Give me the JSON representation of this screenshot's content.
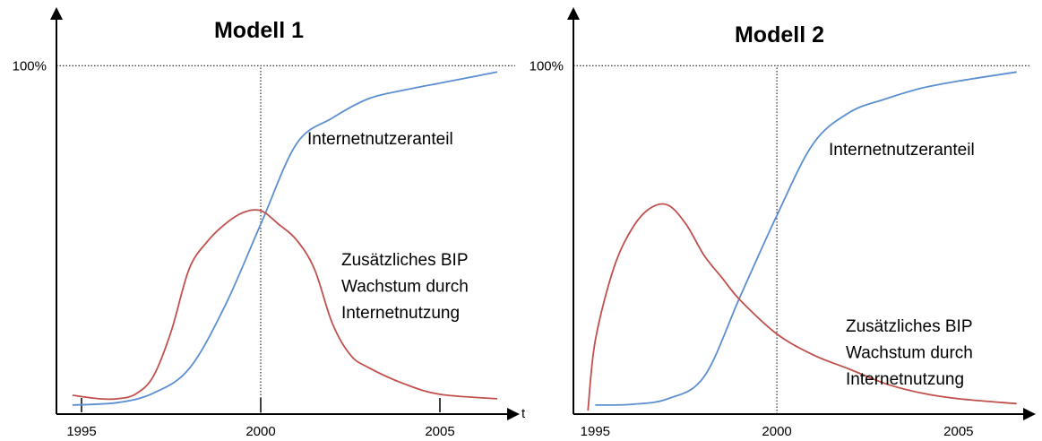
{
  "chart_data": [
    {
      "type": "line",
      "title": "Modell 1",
      "x_label": "t",
      "xlim": [
        1994.3,
        2007.2
      ],
      "xticks": [
        1995,
        2000,
        2005
      ],
      "tick_marks": true,
      "ylim": [
        0,
        115
      ],
      "yticks": [
        {
          "value": 100,
          "label": "100%"
        }
      ],
      "series": [
        {
          "color": "#5b8fd0",
          "x": [
            1994.75,
            1996,
            1997,
            1998,
            1999,
            2000,
            2001,
            2002,
            2003,
            2004,
            2005,
            2006,
            2006.6
          ],
          "values": [
            2.6,
            3.3,
            6,
            13,
            31,
            54.5,
            77.6,
            85,
            90.5,
            93,
            95,
            97,
            98.2
          ]
        },
        {
          "color": "#c0504d",
          "x": [
            1994.75,
            1995.5,
            1996,
            1996.5,
            1997,
            1997.5,
            1998,
            1998.5,
            1999,
            1999.5,
            2000,
            2000.5,
            2001,
            2001.5,
            2002,
            2002.5,
            2003,
            2004,
            2005,
            2006.6
          ],
          "values": [
            5.4,
            4.4,
            4.4,
            5.7,
            10.8,
            23.7,
            41.6,
            49.4,
            54.5,
            57.8,
            58.4,
            54.5,
            50,
            41.6,
            26,
            17,
            13.4,
            8.7,
            5.7,
            4.4
          ]
        }
      ],
      "annotations": [
        {
          "lines": [
            "Internetnutzeranteil"
          ]
        },
        {
          "lines": [
            "Zusätzliches BIP",
            "Wachstum durch",
            "Internetnutzung"
          ]
        }
      ]
    },
    {
      "type": "line",
      "title": "Modell 2",
      "xlim": [
        1994.4,
        2007.1
      ],
      "xticks": [
        1995,
        2000,
        2005
      ],
      "tick_marks": false,
      "ylim": [
        0,
        115
      ],
      "yticks": [
        {
          "value": 100,
          "label": "100%"
        }
      ],
      "series": [
        {
          "color": "#5b8fd0",
          "x": [
            1995,
            1996,
            1997,
            1998,
            1999,
            2000,
            2001,
            2002,
            2003,
            2004,
            2005,
            2006.6
          ],
          "values": [
            2.6,
            2.8,
            4.4,
            10.8,
            34,
            57,
            77.6,
            86.6,
            90.5,
            93.6,
            95.6,
            98.2
          ]
        },
        {
          "color": "#c0504d",
          "x": [
            1994.8,
            1995,
            1995.5,
            1996,
            1996.5,
            1997,
            1997.5,
            1998,
            1998.5,
            1999,
            2000,
            2001,
            2002,
            2003,
            2004,
            2005,
            2006.6
          ],
          "values": [
            1,
            21,
            41.6,
            53,
            59,
            60,
            54.5,
            45.5,
            39,
            32.6,
            23,
            17,
            12.9,
            8.7,
            6,
            4.4,
            3
          ]
        }
      ],
      "annotations": [
        {
          "lines": [
            "Internetnutzeranteil"
          ]
        },
        {
          "lines": [
            "Zusätzliches BIP",
            "Wachstum durch",
            "Internetnutzung"
          ]
        }
      ]
    }
  ]
}
